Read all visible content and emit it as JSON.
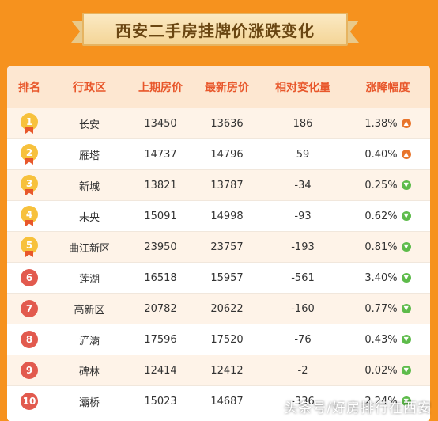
{
  "title": "西安二手房挂牌价涨跌变化",
  "headers": [
    "排名",
    "行政区",
    "上期房价",
    "最新房价",
    "相对变化量",
    "涨降幅度"
  ],
  "rows": [
    {
      "rank": "1",
      "district": "长安",
      "prev": "13450",
      "latest": "13636",
      "change": "186",
      "pct": "1.38%",
      "dir": "up"
    },
    {
      "rank": "2",
      "district": "雁塔",
      "prev": "14737",
      "latest": "14796",
      "change": "59",
      "pct": "0.40%",
      "dir": "up"
    },
    {
      "rank": "3",
      "district": "新城",
      "prev": "13821",
      "latest": "13787",
      "change": "-34",
      "pct": "0.25%",
      "dir": "down"
    },
    {
      "rank": "4",
      "district": "未央",
      "prev": "15091",
      "latest": "14998",
      "change": "-93",
      "pct": "0.62%",
      "dir": "down"
    },
    {
      "rank": "5",
      "district": "曲江新区",
      "prev": "23950",
      "latest": "23757",
      "change": "-193",
      "pct": "0.81%",
      "dir": "down"
    },
    {
      "rank": "6",
      "district": "莲湖",
      "prev": "16518",
      "latest": "15957",
      "change": "-561",
      "pct": "3.40%",
      "dir": "down"
    },
    {
      "rank": "7",
      "district": "高新区",
      "prev": "20782",
      "latest": "20622",
      "change": "-160",
      "pct": "0.77%",
      "dir": "down"
    },
    {
      "rank": "8",
      "district": "浐灞",
      "prev": "17596",
      "latest": "17520",
      "change": "-76",
      "pct": "0.43%",
      "dir": "down"
    },
    {
      "rank": "9",
      "district": "碑林",
      "prev": "12414",
      "latest": "12412",
      "change": "-2",
      "pct": "0.02%",
      "dir": "down"
    },
    {
      "rank": "10",
      "district": "灞桥",
      "prev": "15023",
      "latest": "14687",
      "change": "-336",
      "pct": "2.24%",
      "dir": "down"
    }
  ],
  "watermark": "头条号/好房排行在西安",
  "colors": {
    "background": "#f6921e",
    "header_text": "#e8572b",
    "up": "#e8742b",
    "down": "#5dbb4a",
    "medal": "#f7c13c",
    "rank_circle": "#e25a4e"
  }
}
